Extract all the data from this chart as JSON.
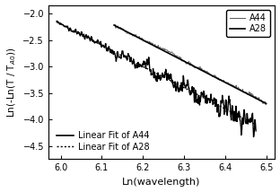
{
  "x_min": 5.98,
  "x_max": 6.5,
  "y_min": -4.75,
  "y_max": -1.85,
  "xlabel": "Ln(wavelength)",
  "slope": -4.0,
  "fit_A44_intercept": 22.3,
  "fit_A28_intercept": 21.8,
  "xticks": [
    6.0,
    6.1,
    6.2,
    6.3,
    6.4,
    6.5
  ],
  "yticks": [
    -2.0,
    -2.5,
    -3.0,
    -3.5,
    -4.0,
    -4.5
  ],
  "legend_data_labels": [
    "A44",
    "A28"
  ],
  "legend_fit_labels": [
    "Linear Fit of A44",
    "Linear Fit of A28"
  ],
  "bg_color": "#ffffff",
  "line_color": "#000000",
  "gray_color": "#555555",
  "A44_x_start": 6.13,
  "A44_x_end": 6.5,
  "A28_x_start": 5.99,
  "A28_x_end": 6.475
}
